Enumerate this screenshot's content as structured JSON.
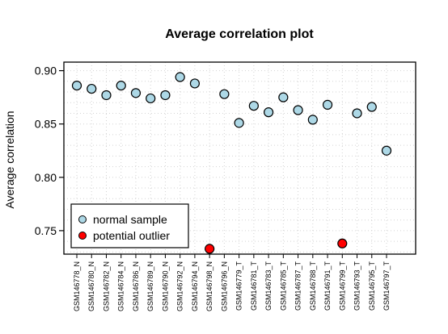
{
  "chart_data": {
    "type": "scatter",
    "title": "Average correlation plot",
    "xlabel": "",
    "ylabel": "Average correlation",
    "ylim": [
      0.728,
      0.908
    ],
    "yticks": [
      0.75,
      0.8,
      0.85,
      0.9
    ],
    "ytick_labels": [
      "0.75",
      "0.80",
      "0.85",
      "0.90"
    ],
    "grid": true,
    "legend_position": "bottom-left",
    "categories": [
      "GSM146778_N",
      "GSM146780_N",
      "GSM146782_N",
      "GSM146784_N",
      "GSM146786_N",
      "GSM146789_N",
      "GSM146790_N",
      "GSM146792_N",
      "GSM146794_N",
      "GSM146798_N",
      "GSM146796_N",
      "GSM146779_T",
      "GSM146781_T",
      "GSM146783_T",
      "GSM146785_T",
      "GSM146787_T",
      "GSM146788_T",
      "GSM146791_T",
      "GSM146799_T",
      "GSM146793_T",
      "GSM146795_T",
      "GSM146797_T"
    ],
    "series": [
      {
        "name": "normal sample",
        "color": "#add8e6",
        "points": [
          {
            "x": "GSM146778_N",
            "y": 0.886
          },
          {
            "x": "GSM146780_N",
            "y": 0.883
          },
          {
            "x": "GSM146782_N",
            "y": 0.877
          },
          {
            "x": "GSM146784_N",
            "y": 0.886
          },
          {
            "x": "GSM146786_N",
            "y": 0.879
          },
          {
            "x": "GSM146789_N",
            "y": 0.874
          },
          {
            "x": "GSM146790_N",
            "y": 0.877
          },
          {
            "x": "GSM146792_N",
            "y": 0.894
          },
          {
            "x": "GSM146794_N",
            "y": 0.888
          },
          {
            "x": "GSM146796_N",
            "y": 0.878
          },
          {
            "x": "GSM146779_T",
            "y": 0.851
          },
          {
            "x": "GSM146781_T",
            "y": 0.867
          },
          {
            "x": "GSM146783_T",
            "y": 0.861
          },
          {
            "x": "GSM146785_T",
            "y": 0.875
          },
          {
            "x": "GSM146787_T",
            "y": 0.863
          },
          {
            "x": "GSM146788_T",
            "y": 0.854
          },
          {
            "x": "GSM146791_T",
            "y": 0.868
          },
          {
            "x": "GSM146793_T",
            "y": 0.86
          },
          {
            "x": "GSM146795_T",
            "y": 0.866
          },
          {
            "x": "GSM146797_T",
            "y": 0.825
          }
        ]
      },
      {
        "name": "potential outlier",
        "color": "#ff0000",
        "points": [
          {
            "x": "GSM146798_N",
            "y": 0.733
          },
          {
            "x": "GSM146799_T",
            "y": 0.738
          }
        ]
      }
    ]
  }
}
